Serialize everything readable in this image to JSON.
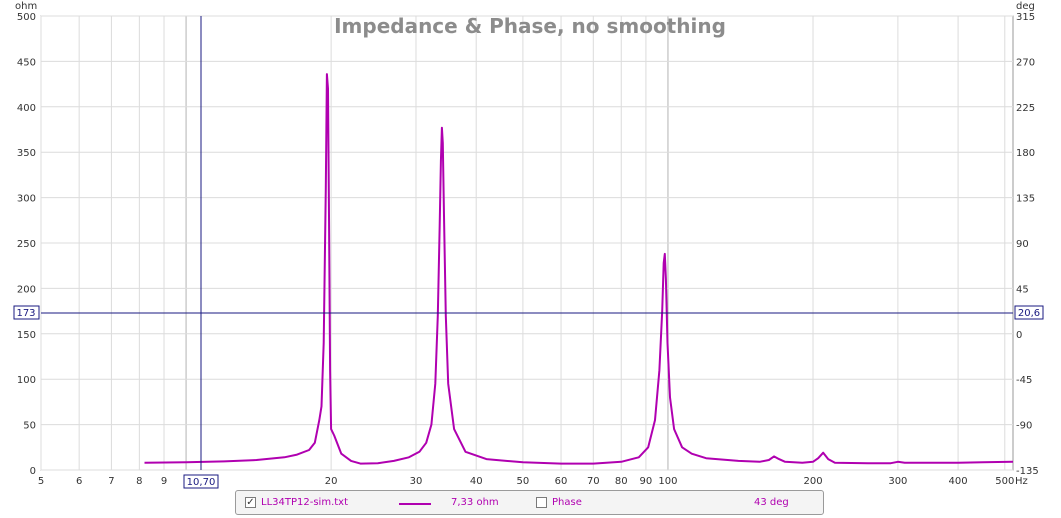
{
  "chart_data": {
    "type": "line",
    "title": "Impedance & Phase, no smoothing",
    "x_scale": "log",
    "x_unit": "Hz",
    "xlim": [
      5,
      520
    ],
    "x_ticks": [
      {
        "v": 5,
        "l": "5"
      },
      {
        "v": 6,
        "l": "6"
      },
      {
        "v": 7,
        "l": "7"
      },
      {
        "v": 8,
        "l": "8"
      },
      {
        "v": 9,
        "l": "9"
      },
      {
        "v": 20,
        "l": "20"
      },
      {
        "v": 30,
        "l": "30"
      },
      {
        "v": 40,
        "l": "40"
      },
      {
        "v": 50,
        "l": "50"
      },
      {
        "v": 60,
        "l": "60"
      },
      {
        "v": 70,
        "l": "70"
      },
      {
        "v": 80,
        "l": "80"
      },
      {
        "v": 90,
        "l": "90"
      },
      {
        "v": 100,
        "l": "100"
      },
      {
        "v": 200,
        "l": "200"
      },
      {
        "v": 300,
        "l": "300"
      },
      {
        "v": 400,
        "l": "400"
      },
      {
        "v": 500,
        "l": "500"
      }
    ],
    "y_left_unit": "ohm",
    "ylim_left": [
      0,
      500
    ],
    "y_left_ticks": [
      0,
      50,
      100,
      150,
      200,
      250,
      300,
      350,
      400,
      450,
      500
    ],
    "y_right_unit": "deg",
    "ylim_right": [
      -135,
      315
    ],
    "y_right_ticks": [
      -135,
      -90,
      -45,
      0,
      45,
      90,
      135,
      180,
      225,
      270,
      315
    ],
    "grid": true,
    "cursor": {
      "x_label": "10,70",
      "x": 10.7,
      "y_left_label": "173",
      "y": 173,
      "y_right_label": "20,6"
    },
    "series": [
      {
        "name": "LL34TP12-sim.txt",
        "color": "#b000b0",
        "axis": "left",
        "points": [
          [
            8.2,
            8
          ],
          [
            10,
            8.5
          ],
          [
            12,
            9.5
          ],
          [
            14,
            11
          ],
          [
            16,
            14
          ],
          [
            17,
            17
          ],
          [
            18,
            22
          ],
          [
            18.5,
            30
          ],
          [
            18.9,
            55
          ],
          [
            19.1,
            70
          ],
          [
            19.3,
            140
          ],
          [
            19.5,
            310
          ],
          [
            19.6,
            436
          ],
          [
            19.7,
            420
          ],
          [
            19.8,
            280
          ],
          [
            19.9,
            110
          ],
          [
            20,
            45
          ],
          [
            20.3,
            38
          ],
          [
            21,
            18
          ],
          [
            22,
            10
          ],
          [
            23,
            7
          ],
          [
            25,
            7.5
          ],
          [
            27,
            10
          ],
          [
            29,
            14
          ],
          [
            30.5,
            20
          ],
          [
            31.5,
            30
          ],
          [
            32.3,
            50
          ],
          [
            32.9,
            95
          ],
          [
            33.3,
            170
          ],
          [
            33.6,
            270
          ],
          [
            33.8,
            340
          ],
          [
            33.95,
            377
          ],
          [
            34.1,
            360
          ],
          [
            34.3,
            280
          ],
          [
            34.6,
            170
          ],
          [
            35,
            95
          ],
          [
            36,
            45
          ],
          [
            38,
            20
          ],
          [
            42,
            12
          ],
          [
            50,
            8.5
          ],
          [
            60,
            7
          ],
          [
            70,
            7
          ],
          [
            80,
            9
          ],
          [
            87,
            14
          ],
          [
            91,
            25
          ],
          [
            94,
            55
          ],
          [
            96,
            110
          ],
          [
            97.3,
            175
          ],
          [
            98,
            228
          ],
          [
            98.5,
            238
          ],
          [
            99,
            210
          ],
          [
            99.8,
            140
          ],
          [
            101,
            80
          ],
          [
            103,
            45
          ],
          [
            107,
            25
          ],
          [
            112,
            18
          ],
          [
            120,
            13
          ],
          [
            140,
            10
          ],
          [
            155,
            9
          ],
          [
            162,
            11
          ],
          [
            166,
            15
          ],
          [
            170,
            12
          ],
          [
            175,
            9
          ],
          [
            190,
            8
          ],
          [
            200,
            9
          ],
          [
            205,
            13
          ],
          [
            210,
            19
          ],
          [
            215,
            12
          ],
          [
            222,
            8
          ],
          [
            260,
            7.5
          ],
          [
            290,
            7.5
          ],
          [
            300,
            9
          ],
          [
            310,
            8
          ],
          [
            350,
            8
          ],
          [
            400,
            8
          ],
          [
            450,
            8.5
          ],
          [
            520,
            9
          ]
        ]
      }
    ]
  },
  "legend": {
    "series_label": "LL34TP12-sim.txt",
    "series_value": "7,33 ohm",
    "phase_label": "Phase",
    "phase_value": "43 deg",
    "series_checked": true,
    "phase_checked": false
  }
}
